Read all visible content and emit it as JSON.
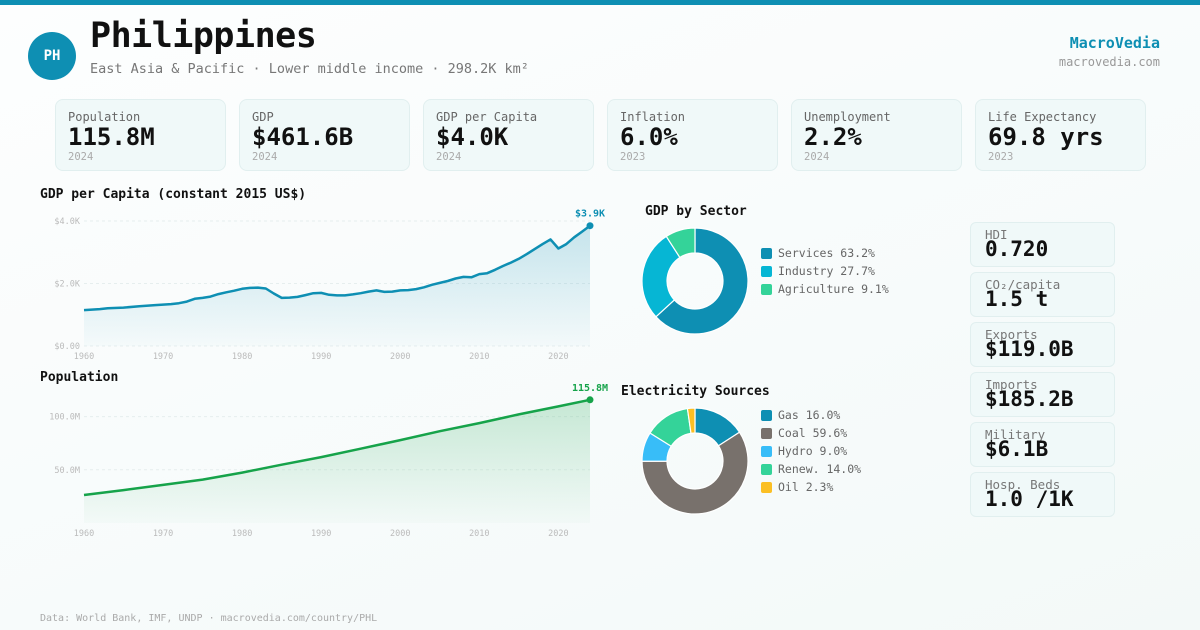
{
  "header": {
    "avatar": "PH",
    "title": "Philippines",
    "subtitle": "East Asia & Pacific · Lower middle income · 298.2K km²",
    "brand": "MacroVedia",
    "brand_url": "macrovedia.com"
  },
  "colors": {
    "accent": "#0e8fb3",
    "population_line": "#16a34a",
    "card_bg": "#f0f9f9"
  },
  "stats": [
    {
      "label": "Population",
      "value": "115.8M",
      "year": "2024"
    },
    {
      "label": "GDP",
      "value": "$461.6B",
      "year": "2024"
    },
    {
      "label": "GDP per Capita",
      "value": "$4.0K",
      "year": "2024"
    },
    {
      "label": "Inflation",
      "value": "6.0%",
      "year": "2023"
    },
    {
      "label": "Unemployment",
      "value": "2.2%",
      "year": "2024"
    },
    {
      "label": "Life Expectancy",
      "value": "69.8 yrs",
      "year": "2023"
    }
  ],
  "side_stats": [
    {
      "label": "HDI",
      "value": "0.720"
    },
    {
      "label": "CO₂/capita",
      "value": "1.5 t"
    },
    {
      "label": "Exports",
      "value": "$119.0B"
    },
    {
      "label": "Imports",
      "value": "$185.2B"
    },
    {
      "label": "Military",
      "value": "$6.1B"
    },
    {
      "label": "Hosp. Beds",
      "value": "1.0 /1K"
    }
  ],
  "footer": "Data: World Bank, IMF, UNDP · macrovedia.com/country/PHL",
  "chart_data": [
    {
      "type": "area",
      "title": "GDP per Capita (constant 2015 US$)",
      "xlabel": "",
      "ylabel": "",
      "xlim": [
        1960,
        2024
      ],
      "ylim": [
        0,
        4000
      ],
      "yticks": [
        0,
        2000,
        4000
      ],
      "ytick_labels": [
        "$0.00",
        "$2.0K",
        "$4.0K"
      ],
      "xticks": [
        1960,
        1970,
        1980,
        1990,
        2000,
        2010,
        2020
      ],
      "xtick_labels": [
        "1960",
        "1970",
        "1980",
        "1990",
        "2000",
        "2010",
        "2020"
      ],
      "grid": true,
      "end_label": "$3.9K",
      "color": "#0e8fb3",
      "x": [
        1960,
        1962,
        1963,
        1965,
        1967,
        1969,
        1971,
        1972,
        1973,
        1974,
        1975,
        1976,
        1977,
        1978,
        1979,
        1980,
        1981,
        1982,
        1983,
        1984,
        1985,
        1986,
        1987,
        1988,
        1989,
        1990,
        1991,
        1992,
        1993,
        1994,
        1995,
        1996,
        1997,
        1998,
        1999,
        2000,
        2001,
        2002,
        2003,
        2004,
        2005,
        2006,
        2007,
        2008,
        2009,
        2010,
        2011,
        2012,
        2013,
        2014,
        2015,
        2016,
        2017,
        2018,
        2019,
        2020,
        2021,
        2022,
        2023,
        2024
      ],
      "values": [
        1150,
        1180,
        1210,
        1230,
        1270,
        1310,
        1340,
        1370,
        1420,
        1510,
        1540,
        1580,
        1660,
        1720,
        1770,
        1830,
        1860,
        1870,
        1840,
        1680,
        1540,
        1550,
        1570,
        1630,
        1690,
        1700,
        1640,
        1620,
        1620,
        1650,
        1690,
        1740,
        1780,
        1730,
        1740,
        1780,
        1790,
        1820,
        1880,
        1960,
        2020,
        2080,
        2160,
        2210,
        2200,
        2300,
        2330,
        2440,
        2560,
        2670,
        2790,
        2940,
        3100,
        3260,
        3410,
        3120,
        3260,
        3480,
        3660,
        3850
      ]
    },
    {
      "type": "area",
      "title": "Population",
      "xlabel": "",
      "ylabel": "",
      "xlim": [
        1960,
        2024
      ],
      "ylim": [
        0,
        125000000
      ],
      "yticks": [
        50000000,
        100000000
      ],
      "ytick_labels": [
        "50.0M",
        "100.0M"
      ],
      "xticks": [
        1960,
        1970,
        1980,
        1990,
        2000,
        2010,
        2020
      ],
      "xtick_labels": [
        "1960",
        "1970",
        "1980",
        "1990",
        "2000",
        "2010",
        "2020"
      ],
      "grid": true,
      "end_label": "115.8M",
      "color": "#16a34a",
      "x": [
        1960,
        1965,
        1970,
        1975,
        1980,
        1985,
        1990,
        1995,
        2000,
        2005,
        2010,
        2015,
        2020,
        2024
      ],
      "values": [
        26300000,
        30900000,
        35800000,
        40800000,
        47400000,
        54800000,
        61900000,
        69800000,
        77900000,
        86300000,
        93900000,
        102100000,
        109600000,
        115800000
      ]
    },
    {
      "type": "pie",
      "title": "GDP by Sector",
      "donut": true,
      "categories": [
        "Services",
        "Industry",
        "Agriculture"
      ],
      "values": [
        63.2,
        27.7,
        9.1
      ],
      "legend_labels": [
        "Services 63.2%",
        "Industry 27.7%",
        "Agriculture 9.1%"
      ],
      "colors": [
        "#0e8fb3",
        "#06b6d4",
        "#34d399"
      ],
      "legend": "right"
    },
    {
      "type": "pie",
      "title": "Electricity Sources",
      "donut": true,
      "categories": [
        "Gas",
        "Coal",
        "Hydro",
        "Renew.",
        "Oil"
      ],
      "values": [
        16.0,
        59.6,
        9.0,
        14.0,
        2.3
      ],
      "legend_labels": [
        "Gas 16.0%",
        "Coal 59.6%",
        "Hydro 9.0%",
        "Renew. 14.0%",
        "Oil 2.3%"
      ],
      "colors": [
        "#0e8fb3",
        "#78716c",
        "#38bdf8",
        "#34d399",
        "#fbbf24"
      ],
      "legend": "right"
    }
  ]
}
